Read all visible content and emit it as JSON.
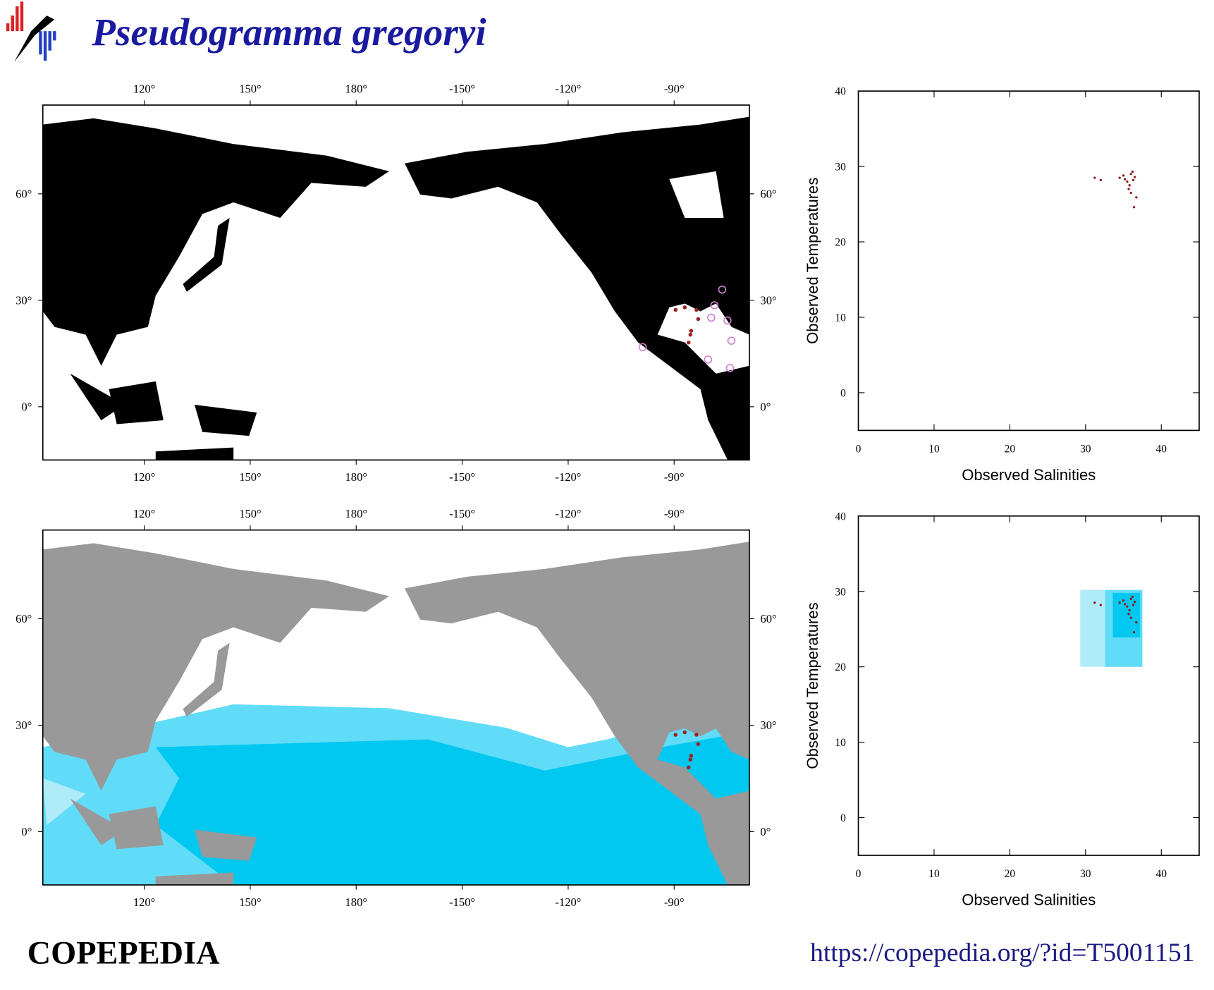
{
  "header": {
    "title": "Pseudogramma gregoryi"
  },
  "footer": {
    "brand": "COPEPEDIA",
    "url": "https://copepedia.org/?id=T5001151"
  },
  "maps": {
    "lonlim": [
      91.3,
      291.3
    ],
    "latlim": [
      -15,
      85
    ],
    "lonticks": [
      {
        "value": 120,
        "label": "120°"
      },
      {
        "value": 150,
        "label": "150°"
      },
      {
        "value": 180,
        "label": "180°"
      },
      {
        "value": 210,
        "label": "-150°"
      },
      {
        "value": 240,
        "label": "-120°"
      },
      {
        "value": 270,
        "label": "-90°"
      }
    ],
    "latticks": [
      {
        "value": 0,
        "label": "0°"
      },
      {
        "value": 30,
        "label": "30°"
      },
      {
        "value": 60,
        "label": "60°"
      }
    ],
    "records": {
      "lon": [
        274.6,
        274.8,
        274.1,
        270.4,
        273.0,
        276.3,
        276.8
      ],
      "lat": [
        20.3,
        21.4,
        18.1,
        27.3,
        28.0,
        27.3,
        24.7
      ],
      "color": "#a02020"
    },
    "other_records": {
      "lon": [
        283.6,
        281.4,
        280.5,
        285.1,
        286.2,
        279.6,
        285.8,
        261.1
      ],
      "lat": [
        33.0,
        28.6,
        25.1,
        24.3,
        18.6,
        13.3,
        10.9,
        16.8
      ],
      "color": "#d080d0"
    }
  },
  "chart_data": [
    {
      "type": "scatter",
      "x_label": "Observed Salinities",
      "y_label": "Observed Temperatures",
      "xlim": [
        0,
        45
      ],
      "ylim": [
        -5,
        40
      ],
      "xticks": [
        0,
        10,
        20,
        30,
        40
      ],
      "yticks": [
        0,
        10,
        20,
        30,
        40
      ],
      "color": "#8b1a1a",
      "x": [
        31.2,
        32,
        34.5,
        35,
        35.5,
        35.8,
        36,
        36.2,
        36.3,
        35.7,
        36,
        36.4,
        36.7,
        35.2,
        36.5
      ],
      "y": [
        28.5,
        28.2,
        28.5,
        28.8,
        28,
        27.5,
        29,
        29.3,
        28.2,
        27,
        26.5,
        24.6,
        25.9,
        28.3,
        28.6
      ]
    },
    {
      "type": "scatter",
      "x_label": "Observed Salinities",
      "y_label": "Observed Temperatures",
      "xlim": [
        0,
        45
      ],
      "ylim": [
        -5,
        40
      ],
      "xticks": [
        0,
        10,
        20,
        30,
        40
      ],
      "yticks": [
        0,
        10,
        20,
        30,
        40
      ],
      "color": "#8b1a1a",
      "ranges": [
        {
          "x": [
            29.3,
            37.5
          ],
          "y": [
            20,
            30.2
          ],
          "color": "#b0ecf8"
        },
        {
          "x": [
            32.6,
            37.5
          ],
          "y": [
            20,
            30.2
          ],
          "color": "#60dcf8"
        },
        {
          "x": [
            33.6,
            37.2
          ],
          "y": [
            23.9,
            29.8
          ],
          "color": "#00c8f0"
        }
      ],
      "x": [
        31.2,
        32,
        34.5,
        35,
        35.5,
        35.8,
        36,
        36.2,
        36.3,
        35.7,
        36,
        36.4,
        36.7,
        35.2,
        36.5
      ],
      "y": [
        28.5,
        28.2,
        28.5,
        28.8,
        28,
        27.5,
        29,
        29.3,
        28.2,
        27,
        26.5,
        24.6,
        25.9,
        28.3,
        28.6
      ]
    }
  ]
}
